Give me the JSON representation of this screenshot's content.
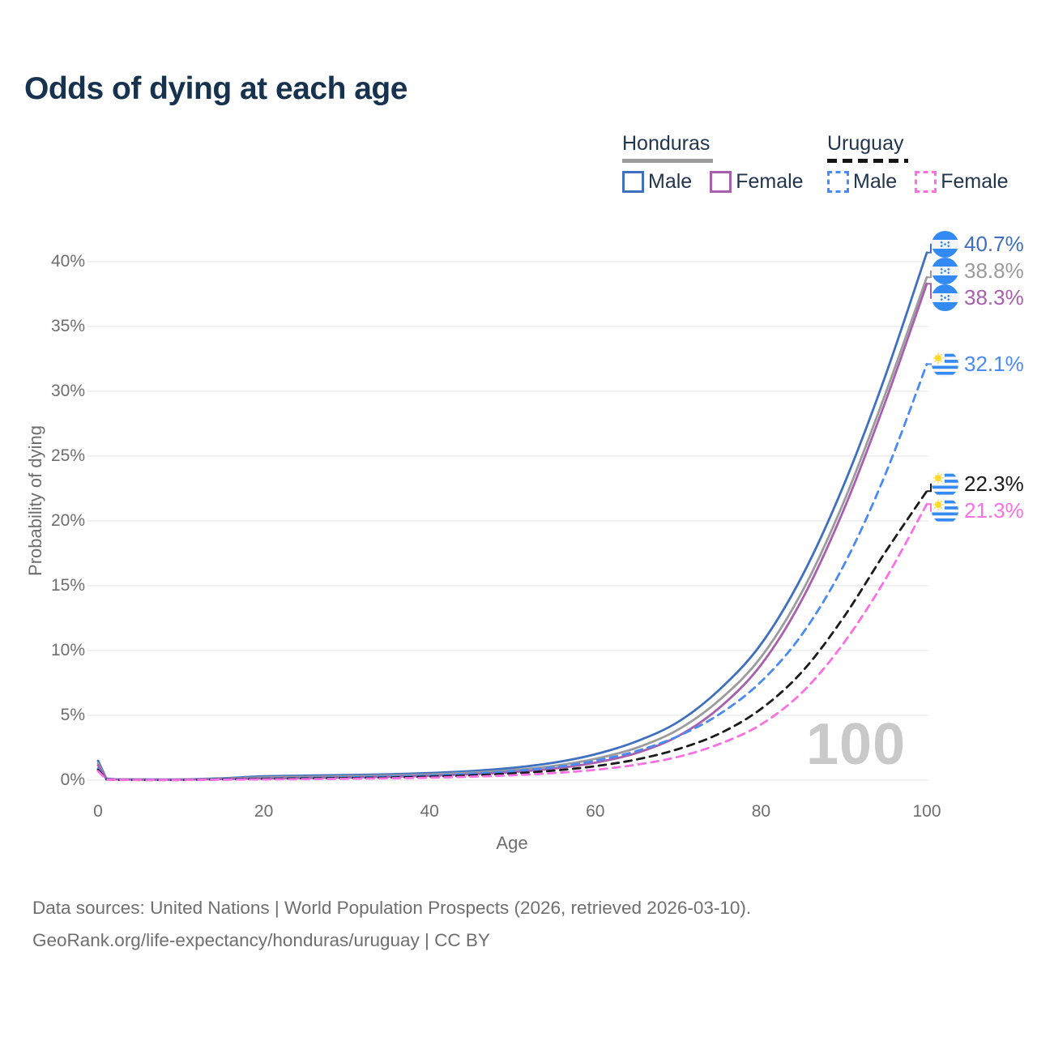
{
  "title": "Odds of dying at each age",
  "legend": {
    "groups": [
      {
        "label": "Honduras",
        "line_style": "solid",
        "line_color": "#9b9b9b",
        "items": [
          {
            "label": "Male",
            "color": "#3e6fc1",
            "dashed": false
          },
          {
            "label": "Female",
            "color": "#a75fae",
            "dashed": false
          }
        ]
      },
      {
        "label": "Uruguay",
        "line_style": "dashed",
        "line_color": "#141414",
        "items": [
          {
            "label": "Male",
            "color": "#4a8af4",
            "dashed": true
          },
          {
            "label": "Female",
            "color": "#fb70e3",
            "dashed": true
          }
        ]
      }
    ]
  },
  "chart_data": {
    "type": "line",
    "title": "Odds of dying at each age",
    "xlabel": "Age",
    "ylabel": "Probability of dying",
    "xlim": [
      0,
      100
    ],
    "ylim": [
      0,
      42
    ],
    "grid": "horizontal",
    "gridline_color": "#ececec",
    "watermark": "100",
    "xticks": {
      "values": [
        0,
        20,
        40,
        60,
        80,
        100
      ],
      "labels": [
        "0",
        "20",
        "40",
        "60",
        "80",
        "100"
      ]
    },
    "yticks": {
      "values": [
        0,
        5,
        10,
        15,
        20,
        25,
        30,
        35,
        40
      ],
      "labels": [
        "0%",
        "5%",
        "10%",
        "15%",
        "20%",
        "25%",
        "30%",
        "35%",
        "40%"
      ]
    },
    "x": [
      0,
      1,
      2,
      5,
      10,
      15,
      20,
      25,
      30,
      35,
      40,
      45,
      50,
      55,
      60,
      65,
      70,
      75,
      80,
      85,
      90,
      95,
      100
    ],
    "series": [
      {
        "name": "Honduras Male",
        "country": "Honduras",
        "flag": "honduras",
        "color": "#3e6fc1",
        "dashed": false,
        "end_label": "40.7%",
        "values": [
          1.5,
          0.12,
          0.08,
          0.06,
          0.06,
          0.15,
          0.3,
          0.35,
          0.4,
          0.45,
          0.55,
          0.7,
          0.95,
          1.35,
          2.0,
          3.0,
          4.5,
          7.0,
          10.5,
          15.8,
          22.8,
          31.2,
          40.7
        ]
      },
      {
        "name": "Honduras Both sexes",
        "country": "Honduras",
        "flag": "honduras",
        "color": "#9b9b9b",
        "dashed": false,
        "end_label": "38.8%",
        "values": [
          1.3,
          0.1,
          0.07,
          0.05,
          0.05,
          0.12,
          0.22,
          0.26,
          0.3,
          0.36,
          0.44,
          0.58,
          0.78,
          1.1,
          1.65,
          2.5,
          3.9,
          6.2,
          9.5,
          14.6,
          21.5,
          29.8,
          38.8
        ]
      },
      {
        "name": "Honduras Female",
        "country": "Honduras",
        "flag": "honduras",
        "color": "#a75fae",
        "dashed": false,
        "end_label": "38.3%",
        "values": [
          1.15,
          0.09,
          0.06,
          0.04,
          0.04,
          0.09,
          0.14,
          0.17,
          0.21,
          0.27,
          0.34,
          0.46,
          0.63,
          0.9,
          1.35,
          2.1,
          3.4,
          5.6,
          8.9,
          14.0,
          20.9,
          29.2,
          38.3
        ]
      },
      {
        "name": "Uruguay Male",
        "country": "Uruguay",
        "flag": "uruguay",
        "color": "#4a8af4",
        "dashed": true,
        "end_label": "32.1%",
        "values": [
          0.9,
          0.07,
          0.04,
          0.03,
          0.03,
          0.08,
          0.13,
          0.17,
          0.22,
          0.28,
          0.36,
          0.5,
          0.7,
          1.0,
          1.5,
          2.25,
          3.4,
          5.1,
          7.6,
          11.3,
          16.6,
          23.6,
          32.1
        ]
      },
      {
        "name": "Uruguay Both sexes",
        "country": "Uruguay",
        "flag": "uruguay",
        "color": "#1a1a1a",
        "dashed": true,
        "end_label": "22.3%",
        "values": [
          0.8,
          0.06,
          0.03,
          0.02,
          0.02,
          0.06,
          0.1,
          0.13,
          0.16,
          0.2,
          0.27,
          0.37,
          0.52,
          0.74,
          1.08,
          1.6,
          2.4,
          3.6,
          5.5,
          8.4,
          12.6,
          17.6,
          22.3
        ]
      },
      {
        "name": "Uruguay Female",
        "country": "Uruguay",
        "flag": "uruguay",
        "color": "#fb70e3",
        "dashed": true,
        "end_label": "21.3%",
        "values": [
          0.7,
          0.05,
          0.03,
          0.02,
          0.02,
          0.04,
          0.06,
          0.08,
          0.11,
          0.14,
          0.19,
          0.27,
          0.38,
          0.55,
          0.8,
          1.2,
          1.8,
          2.8,
          4.3,
          6.8,
          10.6,
          15.5,
          21.3
        ]
      }
    ]
  },
  "footer": {
    "line1": "Data sources: United Nations | World Population Prospects (2026, retrieved 2026-03-10).",
    "line2": "GeoRank.org/life-expectancy/honduras/uruguay | CC BY"
  }
}
